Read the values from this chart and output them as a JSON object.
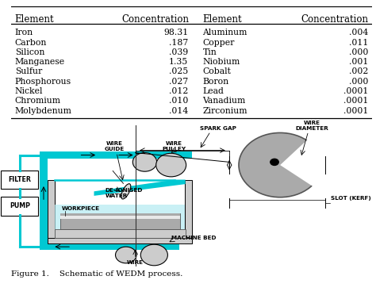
{
  "col_headers": [
    "Element",
    "Concentration",
    "Element",
    "Concentration"
  ],
  "left_elements": [
    "Iron",
    "Carbon",
    "Silicon",
    "Manganese",
    "Sulfur",
    "Phosphorous",
    "Nickel",
    "Chromium",
    "Molybdenum"
  ],
  "left_conc": [
    "98.31",
    ".187",
    ".039",
    "1.35",
    ".025",
    ".027",
    ".012",
    ".010",
    ".014"
  ],
  "right_elements": [
    "Aluminum",
    "Copper",
    "Tin",
    "Niobium",
    "Cobalt",
    "Boron",
    "Lead",
    "Vanadium",
    "Zirconium"
  ],
  "right_conc": [
    ".004",
    ".011",
    ".000",
    ".001",
    ".002",
    ".000",
    ".0001",
    ".0001",
    ".0001"
  ],
  "figure_caption": "Figure 1.    Schematic of WEDM process.",
  "bg_color": "#ffffff",
  "cyan": "#00c8d2",
  "gray_light": "#cccccc",
  "gray_mid": "#aaaaaa",
  "gray_dark": "#888888",
  "font_size_header": 8.5,
  "font_size_body": 7.8,
  "label_fontsize": 5.2
}
